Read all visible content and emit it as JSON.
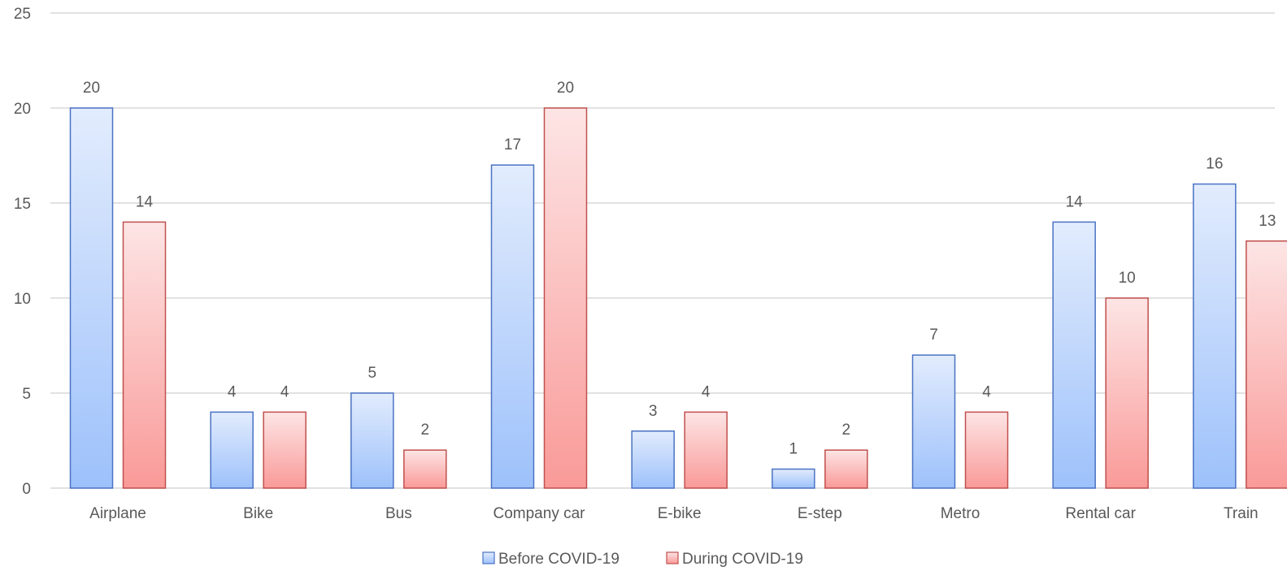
{
  "chart_data": {
    "type": "bar",
    "title": "",
    "xlabel": "",
    "ylabel": "",
    "ylim": [
      0,
      25
    ],
    "yticks": [
      0,
      5,
      10,
      15,
      20,
      25
    ],
    "grid": true,
    "legend_position": "bottom",
    "categories": [
      "Airplane",
      "Bike",
      "Bus",
      "Company car",
      "E-bike",
      "E-step",
      "Metro",
      "Rental car",
      "Train"
    ],
    "series": [
      {
        "name": "Before COVID-19",
        "values": [
          20,
          4,
          5,
          17,
          3,
          1,
          7,
          14,
          16
        ],
        "color_top": "#e2ecfd",
        "color_bottom": "#9dc1fb",
        "stroke": "#4a72c4"
      },
      {
        "name": "During COVID-19",
        "values": [
          14,
          4,
          2,
          20,
          4,
          2,
          4,
          10,
          13
        ],
        "color_top": "#fde5e5",
        "color_bottom": "#f99a98",
        "stroke": "#c0504d"
      }
    ]
  }
}
